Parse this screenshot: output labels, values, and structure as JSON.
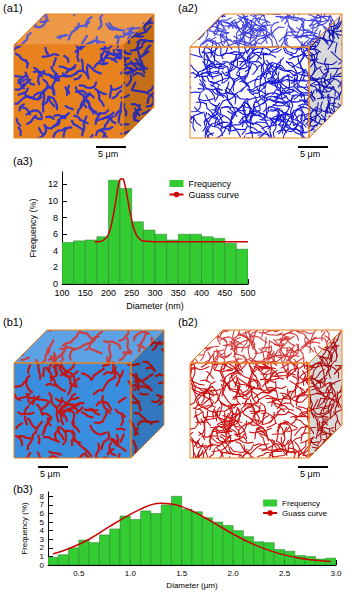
{
  "images": [
    {
      "label": "(a1)",
      "scale_bar": "5 μm",
      "colors": [
        "#e8821e",
        "#3434c8",
        "#e8821e"
      ]
    },
    {
      "label": "(a2)",
      "scale_bar": "5 μm",
      "colors": [
        "#ffffff",
        "#1a1ad6",
        "#e8821e"
      ]
    },
    {
      "label": "(b1)",
      "scale_bar": "5 μm",
      "colors": [
        "#3a8ee0",
        "#c01818",
        "#e8821e"
      ]
    },
    {
      "label": "(b2)",
      "scale_bar": "5 μm",
      "colors": [
        "#ffffff",
        "#cc1111",
        "#e8821e"
      ]
    }
  ],
  "chart_data": [
    {
      "type": "histogram",
      "title": "(a3)",
      "x_label": "Diameter (nm)",
      "y_label": "Frequency (%)",
      "xlim": [
        100,
        500
      ],
      "xticks": [
        100,
        150,
        200,
        250,
        300,
        350,
        400,
        450,
        500
      ],
      "ylim": [
        0,
        13.5
      ],
      "yticks": [
        0,
        2,
        4,
        6,
        8,
        10,
        12
      ],
      "legend": "top-right",
      "series": [
        {
          "name": "Frequency",
          "type": "bar",
          "color": "#33cc33",
          "bins": [
            100,
            125,
            150,
            175,
            200,
            225,
            250,
            275,
            300,
            325,
            350,
            375,
            400,
            425,
            450,
            475,
            500
          ],
          "values": [
            5.0,
            5.2,
            5.3,
            5.7,
            12.5,
            11.5,
            7.5,
            6.5,
            6.0,
            5.3,
            6.0,
            6.0,
            5.7,
            5.5,
            4.9,
            4.2
          ]
        },
        {
          "name": "Guass curve",
          "type": "line",
          "color": "#cc0000",
          "x": [
            170,
            180,
            190,
            200,
            210,
            215,
            220,
            225,
            230,
            235,
            240,
            250,
            260,
            270,
            280,
            300,
            350,
            400,
            450,
            500
          ],
          "values": [
            5.1,
            5.1,
            5.3,
            6.0,
            8.2,
            9.8,
            11.5,
            12.6,
            12.7,
            12.0,
            10.6,
            7.7,
            5.9,
            5.3,
            5.15,
            5.1,
            5.1,
            5.1,
            5.1,
            5.1
          ]
        }
      ]
    },
    {
      "type": "histogram",
      "title": "(b3)",
      "x_label": "Diameter (μm)",
      "y_label": "Frequency (%)",
      "xlim": [
        0.2,
        3.0
      ],
      "xticks": [
        0.5,
        {
          "value": 1,
          "label": "1.0"
        },
        1.5,
        {
          "value": 2,
          "label": "2.0"
        },
        2.5,
        {
          "value": 3,
          "label": "3.0"
        }
      ],
      "ylim": [
        0,
        8.5
      ],
      "yticks": [
        0,
        1,
        2,
        3,
        4,
        5,
        6,
        7,
        8
      ],
      "legend": "top-right",
      "series": [
        {
          "name": "Frequency",
          "type": "bar",
          "color": "#33cc33",
          "bins": [
            0.2,
            0.3,
            0.4,
            0.5,
            0.6,
            0.7,
            0.8,
            0.9,
            1.0,
            1.1,
            1.2,
            1.3,
            1.4,
            1.5,
            1.6,
            1.7,
            1.8,
            1.9,
            2.0,
            2.1,
            2.2,
            2.3,
            2.4,
            2.5,
            2.6,
            2.7,
            2.8,
            2.9,
            3.0
          ],
          "values": [
            0.9,
            1.2,
            2.0,
            2.9,
            2.6,
            3.5,
            4.2,
            5.7,
            5.3,
            6.3,
            6.0,
            7.0,
            8.0,
            6.5,
            6.2,
            5.5,
            5.0,
            4.6,
            4.0,
            3.3,
            2.7,
            2.6,
            1.8,
            1.6,
            1.1,
            1.0,
            0.7,
            0.8
          ]
        },
        {
          "name": "Guass curve",
          "type": "line",
          "color": "#cc0000",
          "x": [
            0.25,
            0.4,
            0.6,
            0.8,
            1.0,
            1.1,
            1.2,
            1.3,
            1.4,
            1.5,
            1.6,
            1.8,
            2.0,
            2.2,
            2.4,
            2.6,
            2.8,
            2.95
          ],
          "values": [
            1.3,
            1.9,
            3.0,
            4.5,
            5.9,
            6.5,
            7.0,
            7.2,
            7.1,
            6.8,
            6.3,
            5.0,
            3.6,
            2.4,
            1.5,
            0.9,
            0.55,
            0.4
          ]
        }
      ]
    }
  ]
}
